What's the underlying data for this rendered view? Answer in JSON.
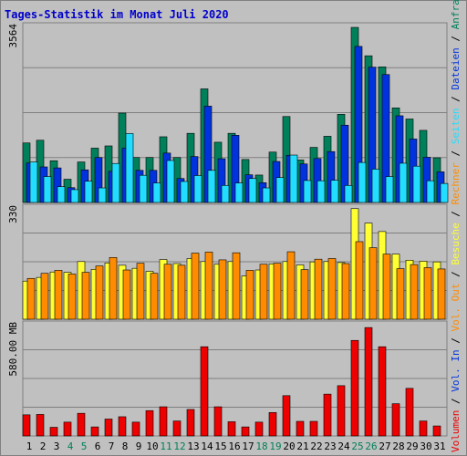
{
  "title": "Tages-Statistik im Monat Juli 2020",
  "colors": {
    "title": "#0000cc",
    "anfragen": "#00805a",
    "dateien": "#0033dd",
    "seiten": "#22ddff",
    "besuche": "#ffff33",
    "rechner": "#ff8c00",
    "volumen": "#ee0000",
    "weekend": "#00805a",
    "text": "#000000"
  },
  "chart_data": [
    {
      "type": "bar",
      "name": "hits",
      "ymax_label": "3564",
      "ymax": 3564,
      "categories": [
        "1",
        "2",
        "3",
        "4",
        "5",
        "6",
        "7",
        "8",
        "9",
        "10",
        "11",
        "12",
        "13",
        "14",
        "15",
        "16",
        "17",
        "18",
        "19",
        "20",
        "21",
        "22",
        "23",
        "24",
        "25",
        "26",
        "27",
        "28",
        "29",
        "30",
        "31"
      ],
      "weekend_days": [
        "4",
        "5",
        "11",
        "12",
        "18",
        "19",
        "25",
        "26"
      ],
      "series": [
        {
          "name": "Anfragen",
          "values": [
            1205,
            1260,
            845,
            470,
            820,
            1100,
            1145,
            1810,
            910,
            910,
            1330,
            910,
            1400,
            2300,
            1220,
            1400,
            870,
            555,
            1020,
            1740,
            860,
            1115,
            1340,
            1785,
            3545,
            2970,
            2745,
            1915,
            1690,
            1460,
            905
          ]
        },
        {
          "name": "Dateien",
          "values": [
            800,
            720,
            700,
            300,
            660,
            910,
            630,
            1100,
            650,
            650,
            1000,
            485,
            930,
            1950,
            885,
            1360,
            560,
            400,
            830,
            955,
            780,
            890,
            1030,
            1565,
            3160,
            2740,
            2590,
            1755,
            1285,
            915,
            620
          ]
        },
        {
          "name": "Seiten",
          "values": [
            820,
            525,
            320,
            260,
            430,
            295,
            790,
            1395,
            550,
            395,
            850,
            425,
            545,
            650,
            345,
            395,
            485,
            295,
            505,
            960,
            445,
            440,
            450,
            345,
            810,
            675,
            525,
            795,
            735,
            440,
            385
          ]
        }
      ]
    },
    {
      "type": "bar",
      "name": "visits",
      "ymax_label": "330",
      "ymax": 330,
      "categories": [
        "1",
        "2",
        "3",
        "4",
        "5",
        "6",
        "7",
        "8",
        "9",
        "10",
        "11",
        "12",
        "13",
        "14",
        "15",
        "16",
        "17",
        "18",
        "19",
        "20",
        "21",
        "22",
        "23",
        "24",
        "25",
        "26",
        "27",
        "28",
        "29",
        "30",
        "31"
      ],
      "series": [
        {
          "name": "Besuche",
          "values": [
            113,
            124,
            140,
            139,
            171,
            148,
            167,
            160,
            151,
            142,
            177,
            165,
            180,
            171,
            163,
            171,
            128,
            146,
            164,
            171,
            161,
            170,
            171,
            168,
            328,
            285,
            260,
            193,
            175,
            172,
            170
          ]
        },
        {
          "name": "Rechner",
          "values": [
            121,
            136,
            145,
            134,
            139,
            158,
            183,
            146,
            166,
            136,
            163,
            160,
            196,
            199,
            176,
            197,
            145,
            163,
            166,
            200,
            147,
            178,
            180,
            165,
            230,
            212,
            193,
            150,
            162,
            153,
            149
          ]
        }
      ]
    },
    {
      "type": "bar",
      "name": "volume",
      "ymax_label": "580.00 MB",
      "ymax": 580,
      "categories": [
        "1",
        "2",
        "3",
        "4",
        "5",
        "6",
        "7",
        "8",
        "9",
        "10",
        "11",
        "12",
        "13",
        "14",
        "15",
        "16",
        "17",
        "18",
        "19",
        "20",
        "21",
        "22",
        "23",
        "24",
        "25",
        "26",
        "27",
        "28",
        "29",
        "30",
        "31"
      ],
      "series": [
        {
          "name": "Volumen",
          "values": [
            110,
            112,
            45,
            72,
            118,
            47,
            88,
            100,
            72,
            132,
            152,
            78,
            138,
            465,
            152,
            74,
            47,
            72,
            122,
            210,
            76,
            76,
            218,
            262,
            498,
            565,
            465,
            168,
            248,
            78,
            52
          ]
        }
      ]
    }
  ],
  "legend_right": [
    {
      "key": "volumen",
      "text": "Volumen"
    },
    {
      "key": "text",
      "text": " / "
    },
    {
      "key": "dateien",
      "text": "Vol. In"
    },
    {
      "key": "text",
      "text": " / "
    },
    {
      "key": "rechner",
      "text": "Vol. Out"
    },
    {
      "key": "text",
      "text": " / "
    },
    {
      "key": "besuche",
      "text": "Besuche"
    },
    {
      "key": "text",
      "text": " / "
    },
    {
      "key": "rechner",
      "text": "Rechner"
    },
    {
      "key": "text",
      "text": " / "
    },
    {
      "key": "seiten",
      "text": "Seiten"
    },
    {
      "key": "text",
      "text": " / "
    },
    {
      "key": "dateien",
      "text": "Dateien"
    },
    {
      "key": "text",
      "text": " / "
    },
    {
      "key": "anfragen",
      "text": "Anfragen"
    }
  ]
}
